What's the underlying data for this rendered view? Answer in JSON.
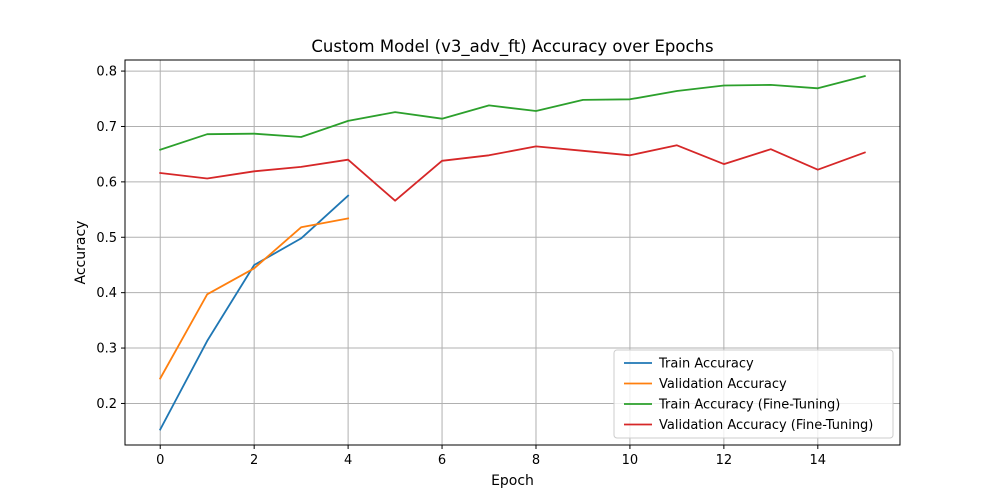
{
  "chart_data": {
    "type": "line",
    "title": "Custom Model (v3_adv_ft) Accuracy over Epochs",
    "xlabel": "Epoch",
    "ylabel": "Accuracy",
    "xlim": [
      -0.75,
      15.75
    ],
    "ylim": [
      0.125,
      0.82
    ],
    "xticks": [
      0,
      2,
      4,
      6,
      8,
      10,
      12,
      14
    ],
    "yticks": [
      0.2,
      0.3,
      0.4,
      0.5,
      0.6,
      0.7,
      0.8
    ],
    "grid": true,
    "legend_position": "lower-right",
    "series": [
      {
        "name": "Train Accuracy",
        "color": "#1f77b4",
        "x": [
          0,
          1,
          2,
          3,
          4
        ],
        "y": [
          0.153,
          0.313,
          0.45,
          0.498,
          0.575
        ]
      },
      {
        "name": "Validation Accuracy",
        "color": "#ff7f0e",
        "x": [
          0,
          1,
          2,
          3,
          4
        ],
        "y": [
          0.245,
          0.397,
          0.444,
          0.518,
          0.534
        ]
      },
      {
        "name": "Train Accuracy (Fine-Tuning)",
        "color": "#2ca02c",
        "x": [
          0,
          1,
          2,
          3,
          4,
          5,
          6,
          7,
          8,
          9,
          10,
          11,
          12,
          13,
          14,
          15
        ],
        "y": [
          0.658,
          0.686,
          0.687,
          0.681,
          0.71,
          0.726,
          0.714,
          0.738,
          0.728,
          0.748,
          0.749,
          0.764,
          0.774,
          0.775,
          0.769,
          0.791
        ]
      },
      {
        "name": "Validation Accuracy (Fine-Tuning)",
        "color": "#d62728",
        "x": [
          0,
          1,
          2,
          3,
          4,
          5,
          6,
          7,
          8,
          9,
          10,
          11,
          12,
          13,
          14,
          15
        ],
        "y": [
          0.616,
          0.606,
          0.619,
          0.627,
          0.64,
          0.566,
          0.638,
          0.648,
          0.664,
          0.656,
          0.648,
          0.666,
          0.632,
          0.659,
          0.622,
          0.653
        ]
      }
    ]
  }
}
